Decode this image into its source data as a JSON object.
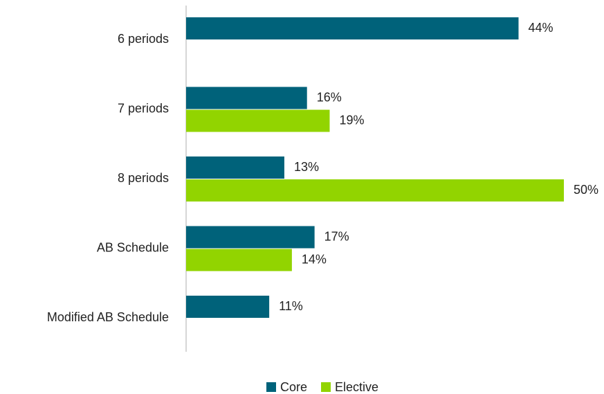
{
  "chart_data": {
    "type": "barh",
    "categories": [
      "6 periods",
      "7 periods",
      "8 periods",
      "AB Schedule",
      "Modified AB Schedule"
    ],
    "series": [
      {
        "name": "Core",
        "color": "#00627a",
        "values": [
          44,
          16,
          13,
          17,
          11
        ],
        "value_labels": [
          "44%",
          "16%",
          "13%",
          "17%",
          "11%"
        ]
      },
      {
        "name": "Elective",
        "color": "#92d400",
        "values": [
          null,
          19,
          50,
          14,
          null
        ],
        "value_labels": [
          null,
          "19%",
          "50%",
          "14%",
          null
        ]
      }
    ]
  }
}
